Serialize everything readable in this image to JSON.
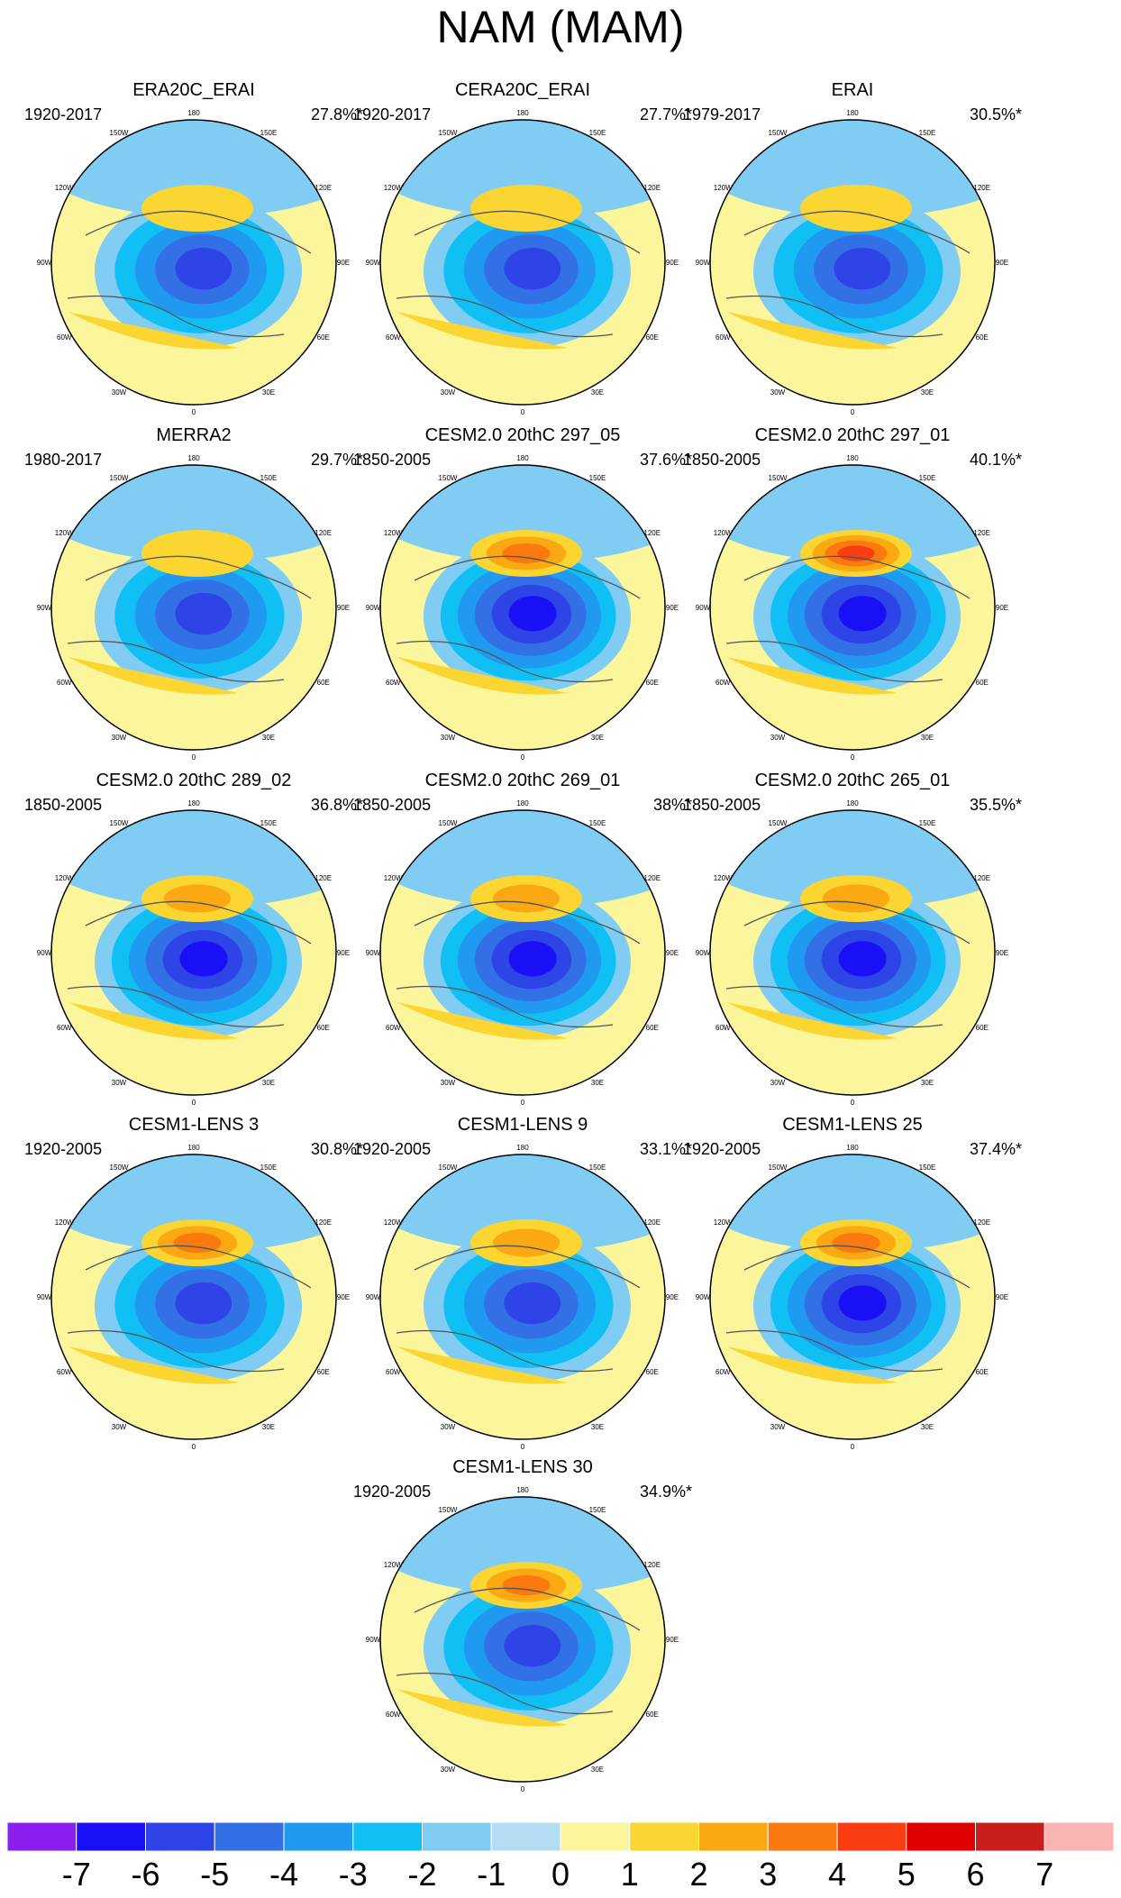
{
  "title": "NAM (MAM)",
  "chart_data": {
    "type": "polar contour maps",
    "title": "NAM (MAM)",
    "projection": "North polar stereographic",
    "longitude_labels": [
      "180",
      "150E",
      "120E",
      "90E",
      "60E",
      "30E",
      "0",
      "30W",
      "60W",
      "90W",
      "120W",
      "150W"
    ],
    "panels": [
      {
        "name": "ERA20C_ERAI",
        "years": "1920-2017",
        "variance": "27.8%*",
        "pacific_peak": 1,
        "atlantic_peak": 1,
        "arctic_min": -5
      },
      {
        "name": "CERA20C_ERAI",
        "years": "1920-2017",
        "variance": "27.7%*",
        "pacific_peak": 1,
        "atlantic_peak": 1,
        "arctic_min": -5
      },
      {
        "name": "ERAI",
        "years": "1979-2017",
        "variance": "30.5%*",
        "pacific_peak": 1,
        "atlantic_peak": 1,
        "arctic_min": -5
      },
      {
        "name": "MERRA2",
        "years": "1980-2017",
        "variance": "29.7%*",
        "pacific_peak": 1,
        "atlantic_peak": 1,
        "arctic_min": -5
      },
      {
        "name": "CESM2.0 20thC 297_05",
        "years": "1850-2005",
        "variance": "37.6%*",
        "pacific_peak": 3,
        "atlantic_peak": 1,
        "arctic_min": -6
      },
      {
        "name": "CESM2.0 20thC 297_01",
        "years": "1850-2005",
        "variance": "40.1%*",
        "pacific_peak": 4,
        "atlantic_peak": 1,
        "arctic_min": -6
      },
      {
        "name": "CESM2.0 20thC 289_02",
        "years": "1850-2005",
        "variance": "36.8%*",
        "pacific_peak": 2,
        "atlantic_peak": 1,
        "arctic_min": -6
      },
      {
        "name": "CESM2.0 20thC 269_01",
        "years": "1850-2005",
        "variance": "38%*",
        "pacific_peak": 2,
        "atlantic_peak": 1,
        "arctic_min": -6
      },
      {
        "name": "CESM2.0 20thC 265_01",
        "years": "1850-2005",
        "variance": "35.5%*",
        "pacific_peak": 2,
        "atlantic_peak": 1,
        "arctic_min": -6
      },
      {
        "name": "CESM1-LENS 3",
        "years": "1920-2005",
        "variance": "30.8%*",
        "pacific_peak": 3,
        "atlantic_peak": 1,
        "arctic_min": -5
      },
      {
        "name": "CESM1-LENS 9",
        "years": "1920-2005",
        "variance": "33.1%*",
        "pacific_peak": 2,
        "atlantic_peak": 1,
        "arctic_min": -5
      },
      {
        "name": "CESM1-LENS 25",
        "years": "1920-2005",
        "variance": "37.4%*",
        "pacific_peak": 3,
        "atlantic_peak": 1,
        "arctic_min": -6
      },
      {
        "name": "CESM1-LENS 30",
        "years": "1920-2005",
        "variance": "34.9%*",
        "pacific_peak": 3,
        "atlantic_peak": 1,
        "arctic_min": -5
      }
    ],
    "colorbar": {
      "labels": [
        "-7",
        "-6",
        "-5",
        "-4",
        "-3",
        "-2",
        "-1",
        "0",
        "1",
        "2",
        "3",
        "4",
        "5",
        "6",
        "7"
      ],
      "colors": [
        "#8a1ff0",
        "#1a10f5",
        "#2e44e6",
        "#3370e6",
        "#1f9af0",
        "#10c0f5",
        "#80ccf2",
        "#b4dcf2",
        "#fbf59c",
        "#fbd633",
        "#fba912",
        "#fb7a0f",
        "#fb3d12",
        "#e00000",
        "#c81e1e",
        "#fbb4b4"
      ]
    }
  }
}
